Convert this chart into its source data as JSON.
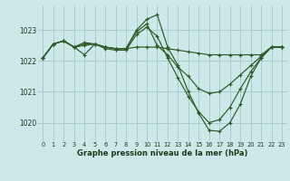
{
  "background_color": "#cce8e8",
  "grid_color": "#aacccc",
  "line_color": "#2d5a27",
  "marker_color": "#2d5a27",
  "xlabel": "Graphe pression niveau de la mer (hPa)",
  "ylim": [
    1019.4,
    1023.8
  ],
  "yticks": [
    1020,
    1021,
    1022,
    1023
  ],
  "xlim": [
    -0.5,
    23.5
  ],
  "xticks": [
    0,
    1,
    2,
    3,
    4,
    5,
    6,
    7,
    8,
    9,
    10,
    11,
    12,
    13,
    14,
    15,
    16,
    17,
    18,
    19,
    20,
    21,
    22,
    23
  ],
  "series": [
    {
      "x": [
        0,
        1,
        2,
        3,
        4,
        5,
        6,
        7,
        8,
        9,
        10,
        11,
        12,
        13,
        14,
        15,
        16,
        17,
        18,
        19,
        20,
        21,
        22,
        23
      ],
      "y": [
        1022.1,
        1022.55,
        1022.65,
        1022.45,
        1022.5,
        1022.55,
        1022.45,
        1022.4,
        1022.4,
        1022.45,
        1022.45,
        1022.45,
        1022.4,
        1022.35,
        1022.3,
        1022.25,
        1022.2,
        1022.2,
        1022.2,
        1022.2,
        1022.2,
        1022.2,
        1022.45,
        1022.45
      ]
    },
    {
      "x": [
        0,
        1,
        2,
        3,
        4,
        5,
        6,
        7,
        8,
        9,
        10,
        11,
        12,
        13,
        14,
        15,
        16,
        17,
        18,
        19,
        20,
        21,
        22,
        23
      ],
      "y": [
        1022.1,
        1022.55,
        1022.65,
        1022.45,
        1022.2,
        1022.55,
        1022.45,
        1022.4,
        1022.4,
        1023.0,
        1023.35,
        1023.5,
        1022.45,
        1021.85,
        1021.0,
        1020.3,
        1019.75,
        1019.72,
        1020.0,
        1020.6,
        1021.5,
        1022.1,
        1022.45,
        1022.45
      ]
    },
    {
      "x": [
        0,
        1,
        2,
        3,
        4,
        5,
        6,
        7,
        8,
        9,
        10,
        11,
        12,
        13,
        14,
        15,
        16,
        17,
        18,
        19,
        20,
        21,
        22,
        23
      ],
      "y": [
        1022.1,
        1022.55,
        1022.65,
        1022.45,
        1022.6,
        1022.55,
        1022.4,
        1022.35,
        1022.35,
        1022.85,
        1023.1,
        1022.8,
        1022.1,
        1021.45,
        1020.85,
        1020.35,
        1020.0,
        1020.1,
        1020.5,
        1021.1,
        1021.65,
        1022.1,
        1022.45,
        1022.45
      ]
    },
    {
      "x": [
        0,
        1,
        2,
        3,
        4,
        5,
        6,
        7,
        8,
        9,
        10,
        11,
        12,
        13,
        14,
        15,
        16,
        17,
        18,
        19,
        20,
        21,
        22,
        23
      ],
      "y": [
        1022.1,
        1022.55,
        1022.65,
        1022.45,
        1022.55,
        1022.55,
        1022.45,
        1022.4,
        1022.4,
        1022.95,
        1023.2,
        1022.5,
        1022.2,
        1021.8,
        1021.5,
        1021.1,
        1020.95,
        1021.0,
        1021.25,
        1021.55,
        1021.85,
        1022.15,
        1022.45,
        1022.45
      ]
    }
  ]
}
